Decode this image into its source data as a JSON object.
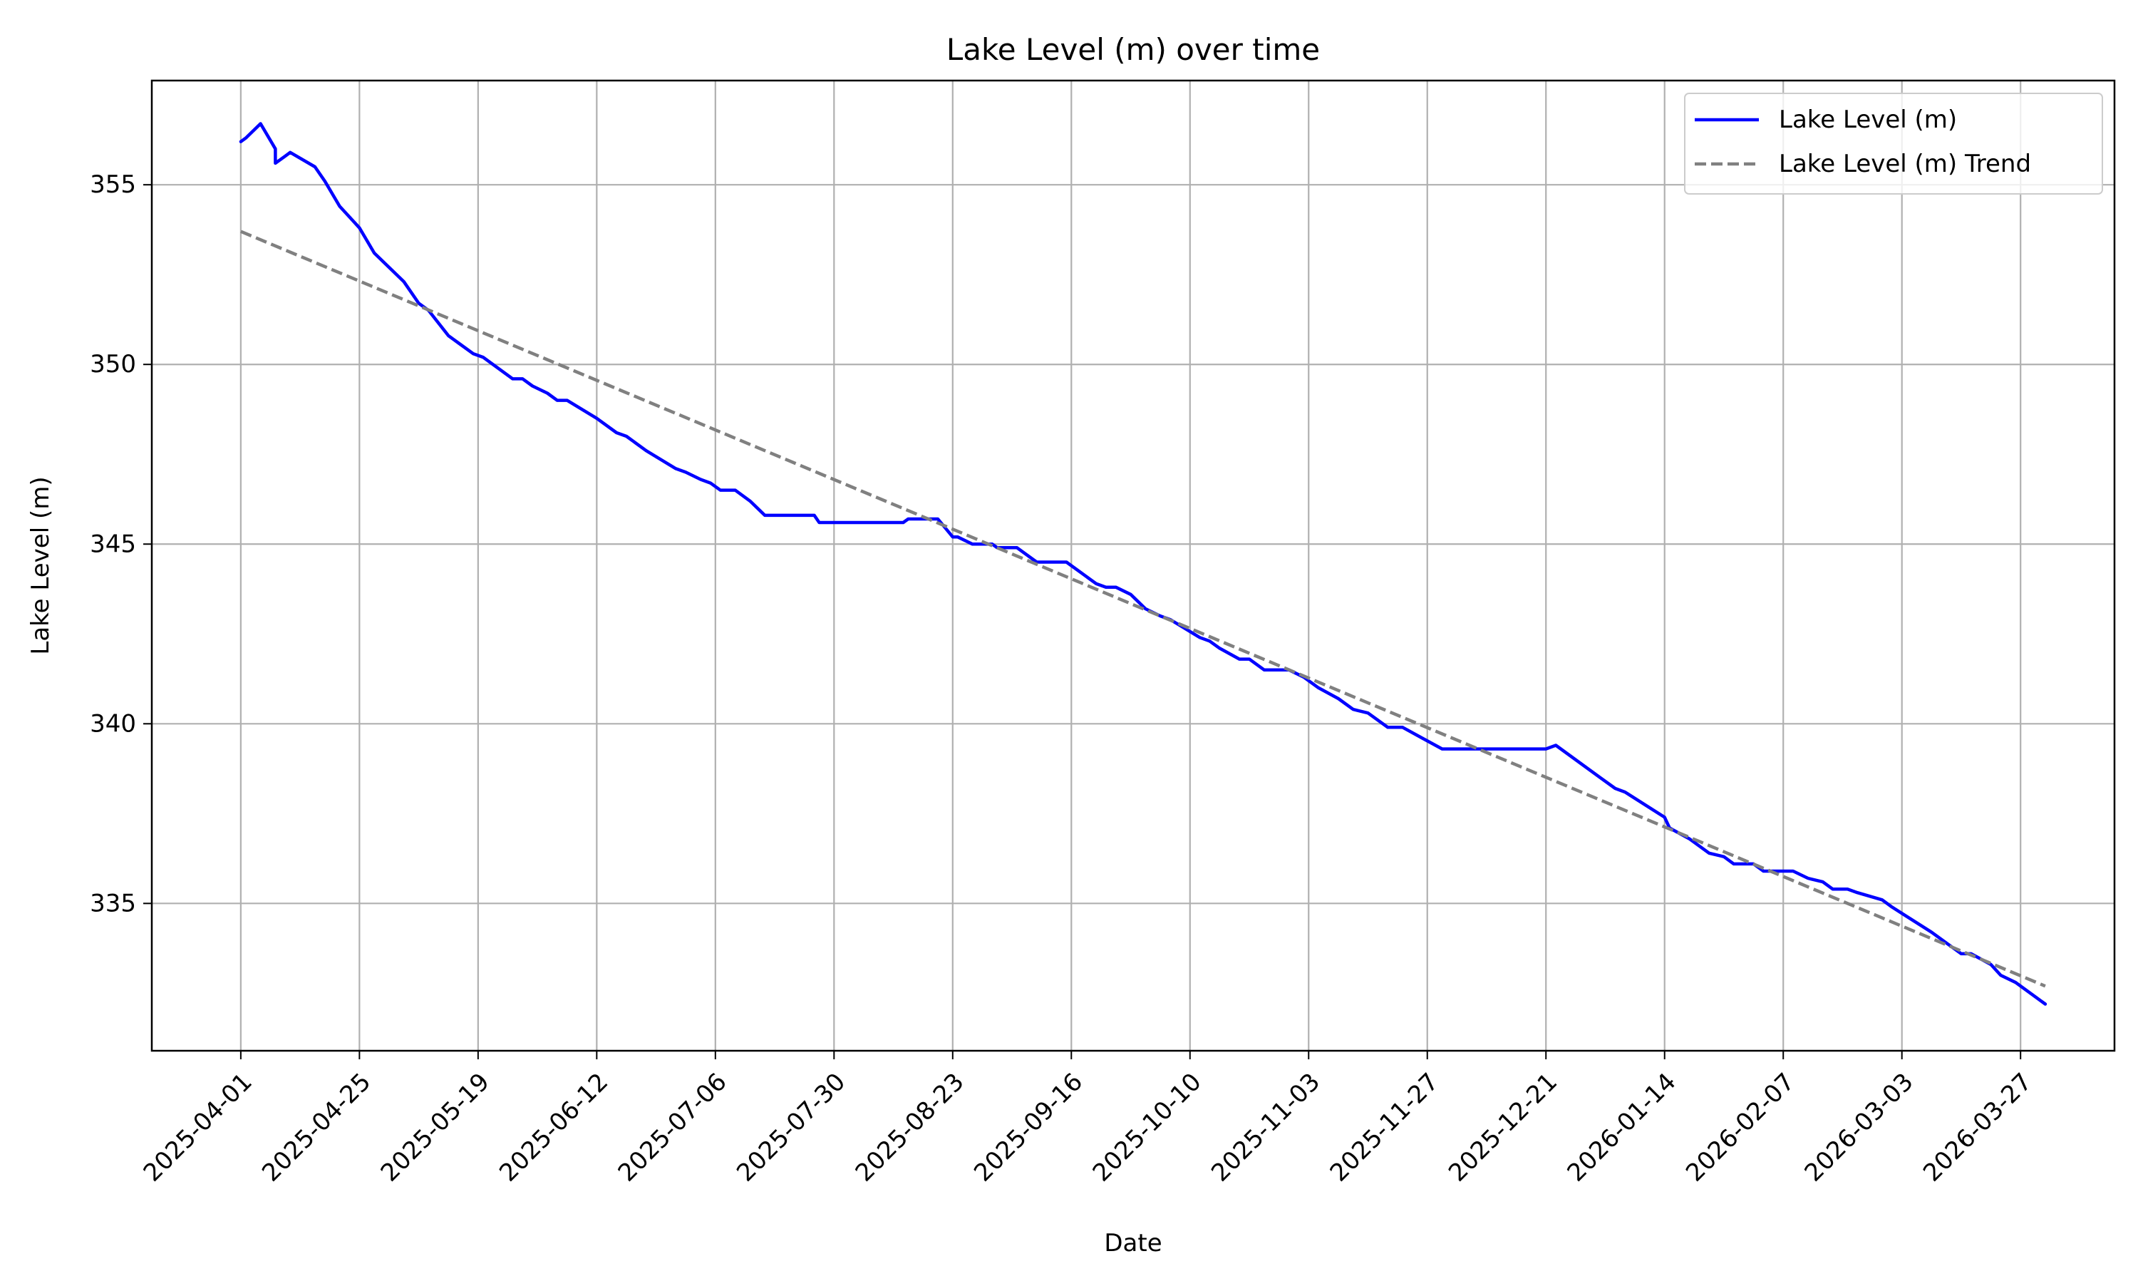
{
  "chart_data": {
    "type": "line",
    "title": "Lake Level (m) over time",
    "xlabel": "Date",
    "ylabel": "Lake Level (m)",
    "x_tick_labels": [
      "2025-04-01",
      "2025-04-25",
      "2025-05-19",
      "2025-06-12",
      "2025-07-06",
      "2025-07-30",
      "2025-08-23",
      "2025-09-16",
      "2025-10-10",
      "2025-11-03",
      "2025-11-27",
      "2025-12-21",
      "2026-01-14",
      "2026-02-07",
      "2026-03-03",
      "2026-03-27"
    ],
    "y_ticks": [
      335,
      340,
      345,
      350,
      355
    ],
    "y_tick_labels": [
      "335",
      "340",
      "345",
      "350",
      "355"
    ],
    "xlim": [
      "2025-03-14",
      "2026-04-15"
    ],
    "ylim": [
      330.9,
      357.9
    ],
    "grid": true,
    "legend_position": "top-right",
    "series": [
      {
        "name": "Lake Level (m)",
        "color": "#0000ff",
        "style": "solid",
        "points": [
          [
            "2025-04-01",
            356.2
          ],
          [
            "2025-04-02",
            356.3
          ],
          [
            "2025-04-05",
            356.7
          ],
          [
            "2025-04-08",
            356.0
          ],
          [
            "2025-04-08",
            355.6
          ],
          [
            "2025-04-10",
            355.8
          ],
          [
            "2025-04-11",
            355.9
          ],
          [
            "2025-04-16",
            355.5
          ],
          [
            "2025-04-18",
            355.1
          ],
          [
            "2025-04-21",
            354.4
          ],
          [
            "2025-04-23",
            354.1
          ],
          [
            "2025-04-25",
            353.8
          ],
          [
            "2025-04-28",
            353.1
          ],
          [
            "2025-05-01",
            352.7
          ],
          [
            "2025-05-04",
            352.3
          ],
          [
            "2025-05-07",
            351.7
          ],
          [
            "2025-05-09",
            351.5
          ],
          [
            "2025-05-13",
            350.8
          ],
          [
            "2025-05-15",
            350.6
          ],
          [
            "2025-05-18",
            350.3
          ],
          [
            "2025-05-20",
            350.2
          ],
          [
            "2025-05-26",
            349.6
          ],
          [
            "2025-05-28",
            349.6
          ],
          [
            "2025-05-30",
            349.4
          ],
          [
            "2025-06-02",
            349.2
          ],
          [
            "2025-06-04",
            349.0
          ],
          [
            "2025-06-06",
            349.0
          ],
          [
            "2025-06-12",
            348.5
          ],
          [
            "2025-06-16",
            348.1
          ],
          [
            "2025-06-18",
            348.0
          ],
          [
            "2025-06-22",
            347.6
          ],
          [
            "2025-06-28",
            347.1
          ],
          [
            "2025-06-30",
            347.0
          ],
          [
            "2025-07-03",
            346.8
          ],
          [
            "2025-07-05",
            346.7
          ],
          [
            "2025-07-07",
            346.5
          ],
          [
            "2025-07-10",
            346.5
          ],
          [
            "2025-07-13",
            346.2
          ],
          [
            "2025-07-16",
            345.8
          ],
          [
            "2025-07-26",
            345.8
          ],
          [
            "2025-07-27",
            345.6
          ],
          [
            "2025-08-13",
            345.6
          ],
          [
            "2025-08-14",
            345.7
          ],
          [
            "2025-08-20",
            345.7
          ],
          [
            "2025-08-23",
            345.2
          ],
          [
            "2025-08-24",
            345.2
          ],
          [
            "2025-08-27",
            345.0
          ],
          [
            "2025-08-31",
            345.0
          ],
          [
            "2025-09-01",
            344.9
          ],
          [
            "2025-09-05",
            344.9
          ],
          [
            "2025-09-09",
            344.5
          ],
          [
            "2025-09-15",
            344.5
          ],
          [
            "2025-09-18",
            344.2
          ],
          [
            "2025-09-21",
            343.9
          ],
          [
            "2025-09-23",
            343.8
          ],
          [
            "2025-09-25",
            343.8
          ],
          [
            "2025-09-28",
            343.6
          ],
          [
            "2025-10-01",
            343.2
          ],
          [
            "2025-10-04",
            343.0
          ],
          [
            "2025-10-06",
            342.9
          ],
          [
            "2025-10-12",
            342.4
          ],
          [
            "2025-10-14",
            342.3
          ],
          [
            "2025-10-16",
            342.1
          ],
          [
            "2025-10-20",
            341.8
          ],
          [
            "2025-10-22",
            341.8
          ],
          [
            "2025-10-25",
            341.5
          ],
          [
            "2025-10-30",
            341.5
          ],
          [
            "2025-11-02",
            341.3
          ],
          [
            "2025-11-05",
            341.0
          ],
          [
            "2025-11-09",
            340.7
          ],
          [
            "2025-11-12",
            340.4
          ],
          [
            "2025-11-15",
            340.3
          ],
          [
            "2025-11-19",
            339.9
          ],
          [
            "2025-11-22",
            339.9
          ],
          [
            "2025-11-26",
            339.6
          ],
          [
            "2025-11-30",
            339.3
          ],
          [
            "2025-12-21",
            339.3
          ],
          [
            "2025-12-23",
            339.4
          ],
          [
            "2026-01-01",
            338.5
          ],
          [
            "2026-01-04",
            338.2
          ],
          [
            "2026-01-06",
            338.1
          ],
          [
            "2026-01-14",
            337.4
          ],
          [
            "2026-01-15",
            337.1
          ],
          [
            "2026-01-19",
            336.8
          ],
          [
            "2026-01-23",
            336.4
          ],
          [
            "2026-01-26",
            336.3
          ],
          [
            "2026-01-28",
            336.1
          ],
          [
            "2026-02-01",
            336.1
          ],
          [
            "2026-02-03",
            335.9
          ],
          [
            "2026-02-09",
            335.9
          ],
          [
            "2026-02-12",
            335.7
          ],
          [
            "2026-02-15",
            335.6
          ],
          [
            "2026-02-17",
            335.4
          ],
          [
            "2026-02-20",
            335.4
          ],
          [
            "2026-02-22",
            335.3
          ],
          [
            "2026-02-27",
            335.1
          ],
          [
            "2026-03-01",
            334.9
          ],
          [
            "2026-03-09",
            334.2
          ],
          [
            "2026-03-12",
            333.9
          ],
          [
            "2026-03-15",
            333.6
          ],
          [
            "2026-03-17",
            333.6
          ],
          [
            "2026-03-21",
            333.3
          ],
          [
            "2026-03-23",
            333.0
          ],
          [
            "2026-03-26",
            332.8
          ],
          [
            "2026-03-31",
            332.3
          ],
          [
            "2026-04-01",
            332.2
          ]
        ]
      },
      {
        "name": "Lake Level (m) Trend",
        "color": "#808080",
        "style": "dashed",
        "points": [
          [
            "2025-04-01",
            353.7
          ],
          [
            "2026-04-01",
            332.7
          ]
        ]
      }
    ]
  }
}
